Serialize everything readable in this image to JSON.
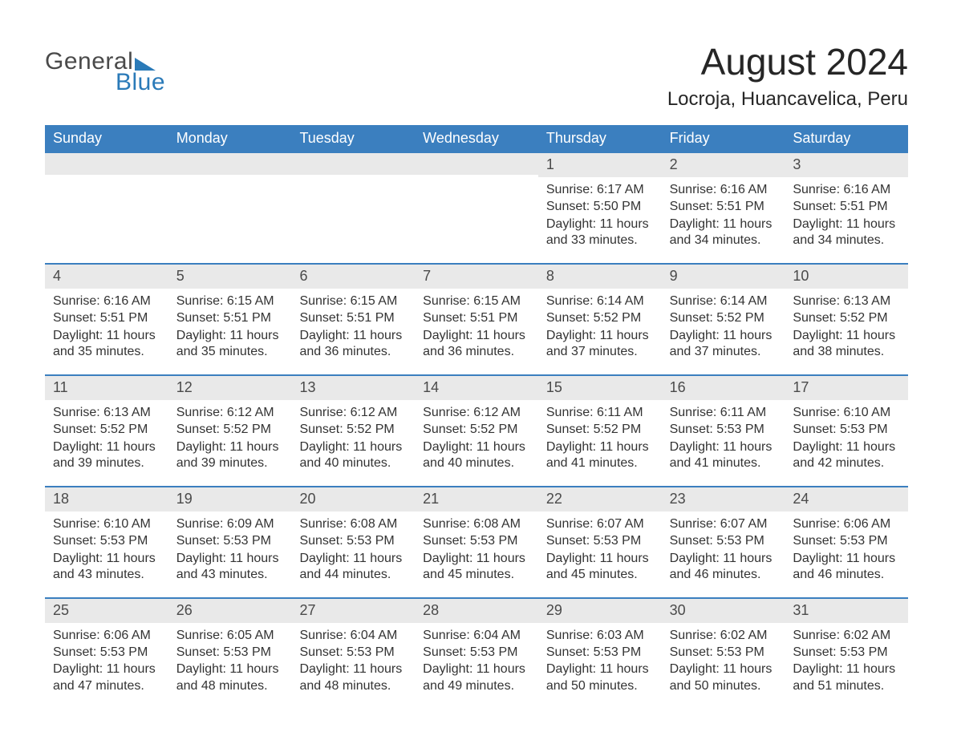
{
  "logo": {
    "general": "General",
    "blue": "Blue",
    "arrow_color": "#2a7ab8"
  },
  "title": "August 2024",
  "location": "Locroja, Huancavelica, Peru",
  "colors": {
    "header_bg": "#3b7fbf",
    "header_text": "#ffffff",
    "daynum_bg": "#e9e9e9",
    "body_text": "#333333",
    "rule": "#3b7fbf",
    "logo_gray": "#4a4a4a",
    "logo_blue": "#2a7ab8"
  },
  "typography": {
    "title_fontsize": 46,
    "location_fontsize": 24,
    "dayheader_fontsize": 18,
    "daynum_fontsize": 18,
    "body_fontsize": 16
  },
  "day_headers": [
    "Sunday",
    "Monday",
    "Tuesday",
    "Wednesday",
    "Thursday",
    "Friday",
    "Saturday"
  ],
  "weeks": [
    [
      {
        "day": "",
        "sunrise": "",
        "sunset": "",
        "daylight": ""
      },
      {
        "day": "",
        "sunrise": "",
        "sunset": "",
        "daylight": ""
      },
      {
        "day": "",
        "sunrise": "",
        "sunset": "",
        "daylight": ""
      },
      {
        "day": "",
        "sunrise": "",
        "sunset": "",
        "daylight": ""
      },
      {
        "day": "1",
        "sunrise": "Sunrise: 6:17 AM",
        "sunset": "Sunset: 5:50 PM",
        "daylight": "Daylight: 11 hours and 33 minutes."
      },
      {
        "day": "2",
        "sunrise": "Sunrise: 6:16 AM",
        "sunset": "Sunset: 5:51 PM",
        "daylight": "Daylight: 11 hours and 34 minutes."
      },
      {
        "day": "3",
        "sunrise": "Sunrise: 6:16 AM",
        "sunset": "Sunset: 5:51 PM",
        "daylight": "Daylight: 11 hours and 34 minutes."
      }
    ],
    [
      {
        "day": "4",
        "sunrise": "Sunrise: 6:16 AM",
        "sunset": "Sunset: 5:51 PM",
        "daylight": "Daylight: 11 hours and 35 minutes."
      },
      {
        "day": "5",
        "sunrise": "Sunrise: 6:15 AM",
        "sunset": "Sunset: 5:51 PM",
        "daylight": "Daylight: 11 hours and 35 minutes."
      },
      {
        "day": "6",
        "sunrise": "Sunrise: 6:15 AM",
        "sunset": "Sunset: 5:51 PM",
        "daylight": "Daylight: 11 hours and 36 minutes."
      },
      {
        "day": "7",
        "sunrise": "Sunrise: 6:15 AM",
        "sunset": "Sunset: 5:51 PM",
        "daylight": "Daylight: 11 hours and 36 minutes."
      },
      {
        "day": "8",
        "sunrise": "Sunrise: 6:14 AM",
        "sunset": "Sunset: 5:52 PM",
        "daylight": "Daylight: 11 hours and 37 minutes."
      },
      {
        "day": "9",
        "sunrise": "Sunrise: 6:14 AM",
        "sunset": "Sunset: 5:52 PM",
        "daylight": "Daylight: 11 hours and 37 minutes."
      },
      {
        "day": "10",
        "sunrise": "Sunrise: 6:13 AM",
        "sunset": "Sunset: 5:52 PM",
        "daylight": "Daylight: 11 hours and 38 minutes."
      }
    ],
    [
      {
        "day": "11",
        "sunrise": "Sunrise: 6:13 AM",
        "sunset": "Sunset: 5:52 PM",
        "daylight": "Daylight: 11 hours and 39 minutes."
      },
      {
        "day": "12",
        "sunrise": "Sunrise: 6:12 AM",
        "sunset": "Sunset: 5:52 PM",
        "daylight": "Daylight: 11 hours and 39 minutes."
      },
      {
        "day": "13",
        "sunrise": "Sunrise: 6:12 AM",
        "sunset": "Sunset: 5:52 PM",
        "daylight": "Daylight: 11 hours and 40 minutes."
      },
      {
        "day": "14",
        "sunrise": "Sunrise: 6:12 AM",
        "sunset": "Sunset: 5:52 PM",
        "daylight": "Daylight: 11 hours and 40 minutes."
      },
      {
        "day": "15",
        "sunrise": "Sunrise: 6:11 AM",
        "sunset": "Sunset: 5:52 PM",
        "daylight": "Daylight: 11 hours and 41 minutes."
      },
      {
        "day": "16",
        "sunrise": "Sunrise: 6:11 AM",
        "sunset": "Sunset: 5:53 PM",
        "daylight": "Daylight: 11 hours and 41 minutes."
      },
      {
        "day": "17",
        "sunrise": "Sunrise: 6:10 AM",
        "sunset": "Sunset: 5:53 PM",
        "daylight": "Daylight: 11 hours and 42 minutes."
      }
    ],
    [
      {
        "day": "18",
        "sunrise": "Sunrise: 6:10 AM",
        "sunset": "Sunset: 5:53 PM",
        "daylight": "Daylight: 11 hours and 43 minutes."
      },
      {
        "day": "19",
        "sunrise": "Sunrise: 6:09 AM",
        "sunset": "Sunset: 5:53 PM",
        "daylight": "Daylight: 11 hours and 43 minutes."
      },
      {
        "day": "20",
        "sunrise": "Sunrise: 6:08 AM",
        "sunset": "Sunset: 5:53 PM",
        "daylight": "Daylight: 11 hours and 44 minutes."
      },
      {
        "day": "21",
        "sunrise": "Sunrise: 6:08 AM",
        "sunset": "Sunset: 5:53 PM",
        "daylight": "Daylight: 11 hours and 45 minutes."
      },
      {
        "day": "22",
        "sunrise": "Sunrise: 6:07 AM",
        "sunset": "Sunset: 5:53 PM",
        "daylight": "Daylight: 11 hours and 45 minutes."
      },
      {
        "day": "23",
        "sunrise": "Sunrise: 6:07 AM",
        "sunset": "Sunset: 5:53 PM",
        "daylight": "Daylight: 11 hours and 46 minutes."
      },
      {
        "day": "24",
        "sunrise": "Sunrise: 6:06 AM",
        "sunset": "Sunset: 5:53 PM",
        "daylight": "Daylight: 11 hours and 46 minutes."
      }
    ],
    [
      {
        "day": "25",
        "sunrise": "Sunrise: 6:06 AM",
        "sunset": "Sunset: 5:53 PM",
        "daylight": "Daylight: 11 hours and 47 minutes."
      },
      {
        "day": "26",
        "sunrise": "Sunrise: 6:05 AM",
        "sunset": "Sunset: 5:53 PM",
        "daylight": "Daylight: 11 hours and 48 minutes."
      },
      {
        "day": "27",
        "sunrise": "Sunrise: 6:04 AM",
        "sunset": "Sunset: 5:53 PM",
        "daylight": "Daylight: 11 hours and 48 minutes."
      },
      {
        "day": "28",
        "sunrise": "Sunrise: 6:04 AM",
        "sunset": "Sunset: 5:53 PM",
        "daylight": "Daylight: 11 hours and 49 minutes."
      },
      {
        "day": "29",
        "sunrise": "Sunrise: 6:03 AM",
        "sunset": "Sunset: 5:53 PM",
        "daylight": "Daylight: 11 hours and 50 minutes."
      },
      {
        "day": "30",
        "sunrise": "Sunrise: 6:02 AM",
        "sunset": "Sunset: 5:53 PM",
        "daylight": "Daylight: 11 hours and 50 minutes."
      },
      {
        "day": "31",
        "sunrise": "Sunrise: 6:02 AM",
        "sunset": "Sunset: 5:53 PM",
        "daylight": "Daylight: 11 hours and 51 minutes."
      }
    ]
  ]
}
